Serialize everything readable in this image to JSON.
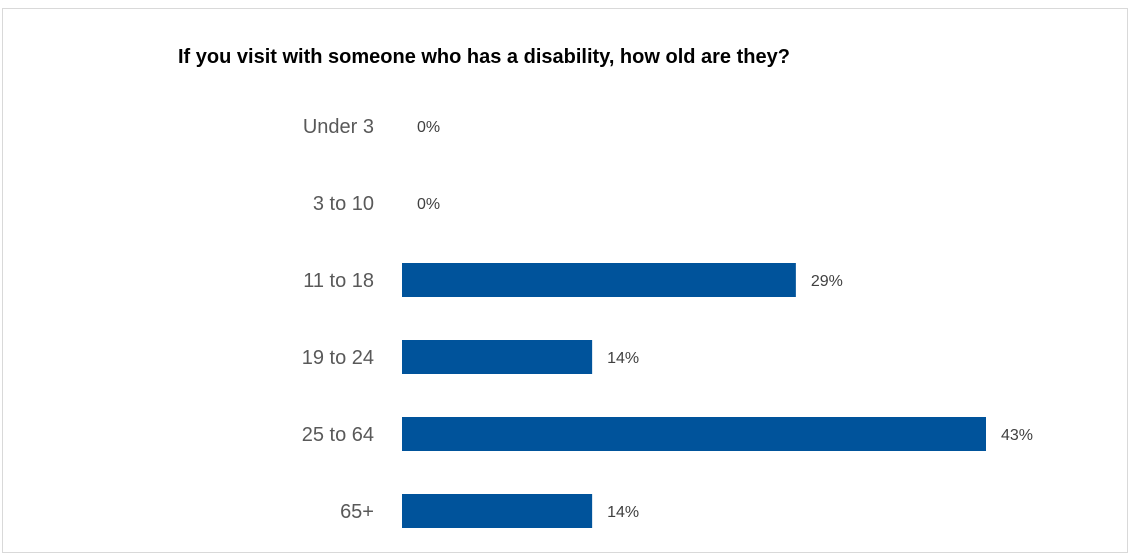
{
  "chart_data": {
    "type": "bar",
    "orientation": "horizontal",
    "title": "If you visit with someone who has a disability, how old are they?",
    "categories": [
      "Under 3",
      "3 to 10",
      "11 to 18",
      "19 to 24",
      "25 to 64",
      "65+"
    ],
    "values": [
      0,
      0,
      29,
      14,
      43,
      14
    ],
    "value_labels": [
      "0%",
      "0%",
      "29%",
      "14%",
      "43%",
      "14%"
    ],
    "unit": "%",
    "xlim": [
      0,
      45
    ],
    "grid": false,
    "legend": "none",
    "bar_color": "#00539B"
  }
}
